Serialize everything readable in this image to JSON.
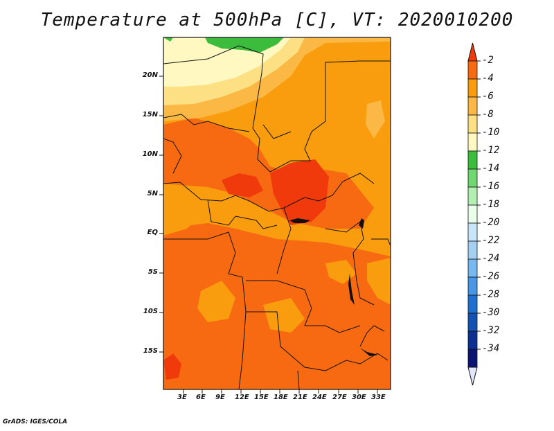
{
  "title": "Temperature at 500hPa [C], VT: 2020010200",
  "credit": "GrADS: IGES/COLA",
  "lat_labels": [
    "20N",
    "15N",
    "10N",
    "5N",
    "EQ",
    "5S",
    "10S",
    "15S"
  ],
  "lon_labels": [
    "3E",
    "6E",
    "9E",
    "12E",
    "15E",
    "18E",
    "21E",
    "24E",
    "27E",
    "30E",
    "33E"
  ],
  "colorbar": {
    "labels": [
      "-2",
      "-4",
      "-6",
      "-8",
      "-10",
      "-12",
      "-14",
      "-16",
      "-18",
      "-20",
      "-22",
      "-24",
      "-26",
      "-28",
      "-30",
      "-32",
      "-34"
    ],
    "colors": [
      "#f03a0c",
      "#f76a12",
      "#f99c0e",
      "#fbb844",
      "#fde084",
      "#fff8c0",
      "#3cbc3c",
      "#70d870",
      "#b2f0b2",
      "#eaffea",
      "#c8e6fa",
      "#a4d0f4",
      "#78b8f0",
      "#4896e6",
      "#2070d2",
      "#1452b2",
      "#0b3092",
      "#0b1470",
      "#e2e6fa"
    ]
  },
  "map": {
    "lon_range": [
      0,
      35
    ],
    "lat_range": [
      -20,
      24.5
    ],
    "region_colors": {
      "hot": "#f03a0c",
      "warm": "#f76a12",
      "mild": "#f99c0e",
      "cool": "#fbb844",
      "cooler": "#fde084",
      "cold": "#fff8c0",
      "green": "#3cbc3c"
    }
  }
}
